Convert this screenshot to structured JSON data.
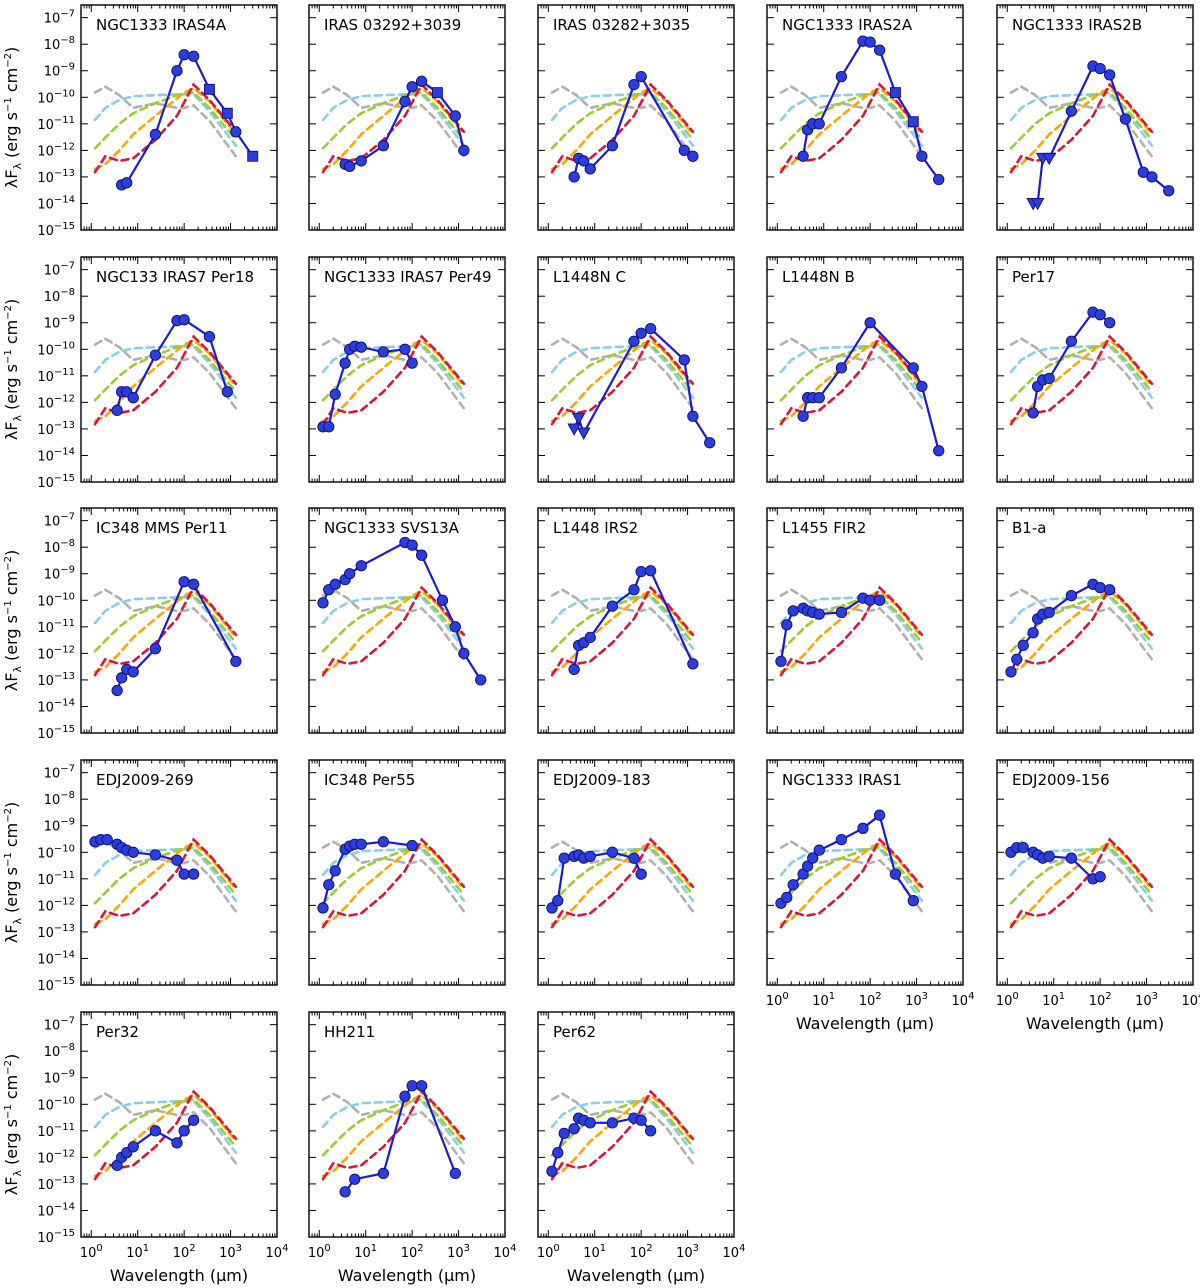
{
  "figure": {
    "ylabel_main": "λF",
    "ylabel_sub": "λ",
    "ylabel_rest": " (erg s",
    "ylabel_exp1": "−1",
    "ylabel_mid": " cm",
    "ylabel_exp2": "−2",
    "ylabel_close": ")",
    "xlabel": "Wavelength (μm)"
  },
  "chart_data": {
    "type": "line",
    "xscale": "log",
    "yscale": "log",
    "xlim": [
      0.6,
      10000
    ],
    "ylim": [
      1e-15,
      3e-07
    ],
    "x_ticks": [
      1,
      10,
      100,
      1000,
      10000
    ],
    "x_tick_labels": [
      {
        "base": "10",
        "exp": "0"
      },
      {
        "base": "10",
        "exp": "1"
      },
      {
        "base": "10",
        "exp": "2"
      },
      {
        "base": "10",
        "exp": "3"
      },
      {
        "base": "10",
        "exp": "4"
      }
    ],
    "y_ticks": [
      1e-15,
      1e-14,
      1e-13,
      1e-12,
      1e-11,
      1e-10,
      1e-09,
      1e-08,
      1e-07
    ],
    "y_tick_labels": [
      {
        "base": "10",
        "exp": "-15"
      },
      {
        "base": "10",
        "exp": "-14"
      },
      {
        "base": "10",
        "exp": "-13"
      },
      {
        "base": "10",
        "exp": "-12"
      },
      {
        "base": "10",
        "exp": "-11"
      },
      {
        "base": "10",
        "exp": "-10"
      },
      {
        "base": "10",
        "exp": "-9"
      },
      {
        "base": "10",
        "exp": "-8"
      },
      {
        "base": "10",
        "exp": "-7"
      }
    ],
    "reference_models": [
      {
        "color": "#b0b0b0",
        "x": [
          1.2,
          2,
          4,
          8,
          24,
          70,
          100,
          160,
          350,
          1300
        ],
        "y": [
          1.5e-10,
          2.5e-10,
          1.2e-10,
          4e-11,
          6e-11,
          4e-11,
          4e-11,
          5e-11,
          1.3e-11,
          6e-13
        ]
      },
      {
        "color": "#87ceeb",
        "x": [
          1.2,
          2,
          4,
          8,
          24,
          70,
          100,
          160,
          350,
          1300
        ],
        "y": [
          1.4e-11,
          4e-11,
          8e-11,
          1.1e-10,
          1.2e-10,
          1.3e-10,
          1.3e-10,
          1.3e-10,
          3e-11,
          1.5e-12
        ]
      },
      {
        "color": "#9acd32",
        "x": [
          1.2,
          2,
          4,
          8,
          24,
          70,
          100,
          160,
          350,
          1300
        ],
        "y": [
          1.2e-12,
          3e-12,
          1e-11,
          2.5e-11,
          6e-11,
          1.2e-10,
          1.4e-10,
          1.5e-10,
          4e-11,
          2.5e-12
        ]
      },
      {
        "color": "#ffa500",
        "x": [
          1.2,
          2,
          4,
          8,
          24,
          70,
          100,
          160,
          350,
          1300
        ],
        "y": [
          2e-13,
          3e-13,
          1e-12,
          4e-12,
          2e-11,
          9e-11,
          1.5e-10,
          2.2e-10,
          7e-11,
          4e-12
        ]
      },
      {
        "color": "#dc143c",
        "x": [
          1.2,
          2,
          4,
          8,
          24,
          70,
          160,
          350,
          1300
        ],
        "y": [
          1.5e-13,
          6e-13,
          4e-13,
          5e-13,
          2.5e-12,
          2e-11,
          3e-10,
          8e-11,
          5e-12
        ]
      }
    ],
    "panels": [
      {
        "title": "NGC1333 IRAS4A",
        "x": [
          4.5,
          5.8,
          24,
          70,
          100,
          160,
          350,
          850,
          1300,
          3000
        ],
        "y": [
          5e-14,
          6e-14,
          4e-12,
          1e-09,
          4e-09,
          3.5e-09,
          2e-10,
          2.5e-11,
          5e-12,
          6e-13
        ],
        "markers": [
          "o",
          "o",
          "o",
          "o",
          "o",
          "o",
          "s",
          "s",
          "o",
          "s"
        ]
      },
      {
        "title": "IRAS 03292+3039",
        "x": [
          3.6,
          4.5,
          8,
          24,
          70,
          100,
          160,
          350,
          850,
          1300
        ],
        "y": [
          3e-13,
          2.5e-13,
          4e-13,
          1.5e-12,
          7e-11,
          2.5e-10,
          4e-10,
          1.5e-10,
          2e-11,
          1e-12
        ],
        "markers": [
          "o",
          "o",
          "o",
          "o",
          "o",
          "o",
          "o",
          "s",
          "o",
          "o"
        ]
      },
      {
        "title": "IRAS 03282+3035",
        "x": [
          3.6,
          4.5,
          5.8,
          8,
          24,
          70,
          100,
          850,
          1300
        ],
        "y": [
          1e-13,
          5e-13,
          4e-13,
          2e-13,
          1.5e-12,
          3e-10,
          6e-10,
          1e-12,
          6e-13
        ],
        "markers": [
          "o",
          "o",
          "o",
          "o",
          "o",
          "o",
          "o",
          "o",
          "o"
        ]
      },
      {
        "title": "NGC1333 IRAS2A",
        "x": [
          3.6,
          4.5,
          5.8,
          8,
          24,
          70,
          100,
          160,
          350,
          850,
          1300,
          3000
        ],
        "y": [
          6e-13,
          6e-12,
          1e-11,
          1e-11,
          6e-10,
          1.3e-08,
          1.2e-08,
          6e-09,
          1.5e-10,
          1.2e-11,
          6e-13,
          8e-14
        ],
        "markers": [
          "o",
          "o",
          "o",
          "o",
          "o",
          "o",
          "o",
          "o",
          "s",
          "s",
          "o",
          "o"
        ]
      },
      {
        "title": "NGC1333 IRAS2B",
        "x": [
          3.6,
          4.5,
          5.8,
          8,
          24,
          70,
          100,
          160,
          350,
          850,
          1300,
          3000
        ],
        "y": [
          1e-14,
          1e-14,
          5e-13,
          5e-13,
          3e-11,
          1.5e-09,
          1.2e-09,
          7e-10,
          1.5e-11,
          1.5e-13,
          1e-13,
          3e-14
        ],
        "markers": [
          "v",
          "v",
          "v",
          "v",
          "o",
          "o",
          "o",
          "o",
          "o",
          "o",
          "o",
          "o"
        ]
      },
      {
        "title": "NGC133 IRAS7 Per18",
        "x": [
          3.6,
          4.5,
          5.8,
          8,
          24,
          70,
          100,
          350,
          850
        ],
        "y": [
          5e-13,
          2.5e-12,
          2.5e-12,
          1.5e-12,
          6e-11,
          1.2e-09,
          1.3e-09,
          3e-10,
          2.5e-12
        ],
        "markers": [
          "o",
          "o",
          "o",
          "o",
          "o",
          "o",
          "o",
          "o",
          "o"
        ]
      },
      {
        "title": "NGC1333 IRAS7 Per49",
        "x": [
          1.2,
          1.6,
          2.2,
          3.6,
          4.5,
          5.8,
          8,
          24,
          70,
          100
        ],
        "y": [
          1.2e-13,
          1.2e-13,
          2e-12,
          3e-11,
          1e-10,
          1.3e-10,
          1.2e-10,
          8e-11,
          1e-10,
          3e-11
        ],
        "markers": [
          "o",
          "o",
          "o",
          "o",
          "o",
          "o",
          "o",
          "o",
          "o",
          "o"
        ]
      },
      {
        "title": "L1448N C",
        "x": [
          3.6,
          4.5,
          5.8,
          70,
          100,
          160,
          850,
          1300,
          3000
        ],
        "y": [
          1e-13,
          2.5e-13,
          7e-14,
          2e-10,
          4e-10,
          6e-10,
          4e-11,
          3e-13,
          3e-14
        ],
        "markers": [
          "v",
          "v",
          "v",
          "o",
          "o",
          "o",
          "o",
          "o",
          "o"
        ]
      },
      {
        "title": "L1448N B",
        "x": [
          3.6,
          4.5,
          5.8,
          8,
          24,
          100,
          850,
          1300,
          3000
        ],
        "y": [
          3e-13,
          1.5e-12,
          1.5e-12,
          1.5e-12,
          2e-11,
          1e-09,
          2e-11,
          4e-12,
          1.5e-14
        ],
        "markers": [
          "o",
          "o",
          "o",
          "o",
          "o",
          "o",
          "o",
          "o",
          "o"
        ]
      },
      {
        "title": "Per17",
        "x": [
          3.6,
          4.5,
          5.8,
          8,
          24,
          70,
          100,
          160
        ],
        "y": [
          4e-13,
          4e-12,
          7e-12,
          8e-12,
          2e-10,
          2.5e-09,
          2e-09,
          1e-09
        ],
        "markers": [
          "o",
          "o",
          "o",
          "o",
          "o",
          "o",
          "o",
          "o"
        ]
      },
      {
        "title": "IC348 MMS Per11",
        "x": [
          3.6,
          4.5,
          5.8,
          8,
          24,
          100,
          160,
          1300
        ],
        "y": [
          4e-14,
          1.2e-13,
          2.5e-13,
          2e-13,
          1.5e-12,
          5e-10,
          4e-10,
          5e-13
        ],
        "markers": [
          "o",
          "o",
          "o",
          "o",
          "o",
          "o",
          "o",
          "o"
        ]
      },
      {
        "title": "NGC1333 SVS13A",
        "x": [
          1.2,
          1.6,
          2.2,
          3.6,
          4.5,
          8,
          70,
          100,
          160,
          450,
          850,
          1300,
          3000
        ],
        "y": [
          8e-11,
          2.5e-10,
          4e-10,
          6e-10,
          1e-09,
          2e-09,
          1.5e-08,
          1.2e-08,
          5e-09,
          1e-10,
          1e-11,
          1e-12,
          1e-13
        ],
        "markers": [
          "o",
          "o",
          "o",
          "o",
          "o",
          "o",
          "o",
          "o",
          "o",
          "o",
          "o",
          "o",
          "o"
        ]
      },
      {
        "title": "L1448 IRS2",
        "x": [
          3.6,
          4.5,
          5.8,
          8,
          24,
          70,
          100,
          160,
          1300
        ],
        "y": [
          2.5e-13,
          2e-12,
          2.5e-12,
          4e-12,
          6e-11,
          2.5e-10,
          1.2e-09,
          1.3e-09,
          4e-13
        ],
        "markers": [
          "o",
          "o",
          "o",
          "o",
          "o",
          "o",
          "o",
          "o",
          "o"
        ]
      },
      {
        "title": "L1455 FIR2",
        "x": [
          1.2,
          1.6,
          2.2,
          3.6,
          4.5,
          5.8,
          8,
          24,
          70,
          100,
          160
        ],
        "y": [
          5e-13,
          1.2e-11,
          4e-11,
          5e-11,
          4e-11,
          3.5e-11,
          3e-11,
          3.5e-11,
          1.2e-10,
          1e-10,
          1e-10
        ],
        "markers": [
          "o",
          "o",
          "o",
          "o",
          "o",
          "o",
          "o",
          "o",
          "o",
          "o",
          "o"
        ]
      },
      {
        "title": "B1-a",
        "x": [
          1.2,
          1.6,
          2.2,
          3.6,
          4.5,
          5.8,
          8,
          24,
          70,
          100,
          160
        ],
        "y": [
          2e-13,
          6e-13,
          2e-12,
          6e-12,
          2e-11,
          3e-11,
          3.5e-11,
          1.5e-10,
          4e-10,
          3e-10,
          2.5e-10
        ],
        "markers": [
          "o",
          "o",
          "o",
          "o",
          "o",
          "o",
          "o",
          "o",
          "o",
          "o",
          "o"
        ]
      },
      {
        "title": "EDJ2009-269",
        "x": [
          1.2,
          1.6,
          2.2,
          3.6,
          4.5,
          5.8,
          8,
          24,
          70,
          100,
          160
        ],
        "y": [
          2.5e-10,
          3e-10,
          3e-10,
          2e-10,
          1.5e-10,
          1.2e-10,
          1e-10,
          8e-11,
          5e-11,
          1.5e-11,
          1.5e-11
        ],
        "markers": [
          "o",
          "o",
          "o",
          "o",
          "o",
          "o",
          "o",
          "o",
          "o",
          "o",
          "o"
        ]
      },
      {
        "title": "IC348 Per55",
        "x": [
          1.2,
          1.6,
          2.2,
          3.6,
          4.5,
          5.8,
          8,
          24,
          100
        ],
        "y": [
          8e-13,
          6e-12,
          2e-11,
          1.3e-10,
          1.7e-10,
          2e-10,
          2e-10,
          2.5e-10,
          1.8e-10
        ],
        "markers": [
          "o",
          "o",
          "o",
          "o",
          "o",
          "o",
          "o",
          "o",
          "o"
        ]
      },
      {
        "title": "EDJ2009-183",
        "x": [
          1.2,
          1.6,
          2.2,
          3.6,
          4.5,
          5.8,
          8,
          24,
          70,
          100
        ],
        "y": [
          8e-13,
          1.5e-12,
          6e-11,
          7e-11,
          8e-11,
          6e-11,
          7e-11,
          1e-10,
          6e-11,
          1.5e-11
        ],
        "markers": [
          "o",
          "o",
          "o",
          "o",
          "o",
          "o",
          "o",
          "o",
          "o",
          "o"
        ]
      },
      {
        "title": "NGC1333 IRAS1",
        "x": [
          1.2,
          1.6,
          2.2,
          3.6,
          4.5,
          5.8,
          8,
          24,
          70,
          160,
          350,
          850
        ],
        "y": [
          1.2e-12,
          2e-12,
          6e-12,
          1.5e-11,
          3e-11,
          6e-11,
          1.2e-10,
          3e-10,
          8e-10,
          2.5e-09,
          1.5e-11,
          1.5e-12
        ],
        "markers": [
          "o",
          "o",
          "o",
          "o",
          "o",
          "o",
          "o",
          "o",
          "o",
          "o",
          "o",
          "o"
        ]
      },
      {
        "title": "EDJ2009-156",
        "x": [
          1.2,
          1.6,
          2.2,
          3.6,
          4.5,
          5.8,
          8,
          24,
          70,
          100
        ],
        "y": [
          1e-10,
          1.5e-10,
          1.5e-10,
          1e-10,
          8e-11,
          6e-11,
          7e-11,
          6e-11,
          1e-11,
          1.2e-11
        ],
        "markers": [
          "o",
          "o",
          "o",
          "o",
          "o",
          "o",
          "o",
          "o",
          "o",
          "o"
        ]
      },
      {
        "title": "Per32",
        "x": [
          3.6,
          4.5,
          5.8,
          8,
          24,
          70,
          100,
          160
        ],
        "y": [
          5e-13,
          1e-12,
          1.5e-12,
          2.5e-12,
          1e-11,
          3.5e-12,
          1e-11,
          2.5e-11
        ],
        "markers": [
          "o",
          "o",
          "o",
          "o",
          "o",
          "o",
          "o",
          "o"
        ]
      },
      {
        "title": "HH211",
        "x": [
          3.6,
          5.8,
          24,
          70,
          100,
          160,
          850
        ],
        "y": [
          5e-14,
          1.5e-13,
          2.5e-13,
          2e-10,
          5e-10,
          5e-10,
          2.5e-13
        ],
        "markers": [
          "o",
          "o",
          "o",
          "o",
          "o",
          "o",
          "o"
        ]
      },
      {
        "title": "Per62",
        "x": [
          1.2,
          1.6,
          2.2,
          3.6,
          4.5,
          5.8,
          8,
          24,
          70,
          100,
          160
        ],
        "y": [
          3e-13,
          1.5e-12,
          8e-12,
          1.2e-11,
          3e-11,
          2.5e-11,
          2e-11,
          2e-11,
          3e-11,
          2.5e-11,
          1e-11
        ],
        "markers": [
          "o",
          "o",
          "o",
          "o",
          "o",
          "o",
          "o",
          "o",
          "o",
          "o",
          "o"
        ]
      }
    ]
  }
}
